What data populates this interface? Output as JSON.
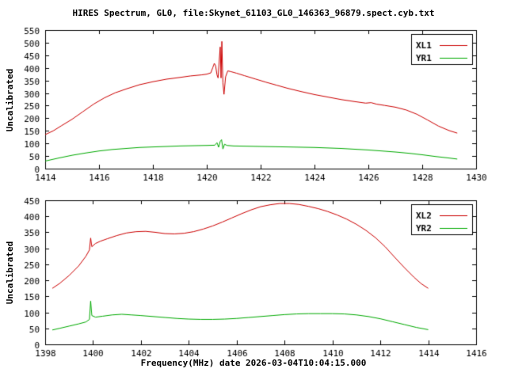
{
  "title": "HIRES Spectrum, GL0, file:Skynet_61103_GL0_146363_96879.spect.cyb.txt",
  "xlabel": "Frequency(MHz) date 2026-03-04T10:04:15.000",
  "colors": {
    "background": "#ffffff",
    "axis": "#000000",
    "red": "#cc0000",
    "green": "#00aa00"
  },
  "chart_data": [
    {
      "type": "line",
      "ylabel": "Uncalibrated",
      "xlim": [
        1414,
        1430
      ],
      "ylim": [
        0,
        550
      ],
      "xtick_step": 2,
      "ytick_step": 50,
      "grid": false,
      "legend_position": "top-right",
      "series": [
        {
          "name": "XL1",
          "color": "#cc0000",
          "points": [
            [
              1414.0,
              135
            ],
            [
              1414.3,
              150
            ],
            [
              1414.6,
              170
            ],
            [
              1415.0,
              196
            ],
            [
              1415.4,
              226
            ],
            [
              1415.8,
              256
            ],
            [
              1416.2,
              281
            ],
            [
              1416.6,
              301
            ],
            [
              1417.0,
              316
            ],
            [
              1417.5,
              333
            ],
            [
              1418.0,
              345
            ],
            [
              1418.5,
              355
            ],
            [
              1419.0,
              362
            ],
            [
              1419.4,
              368
            ],
            [
              1419.8,
              372
            ],
            [
              1420.0,
              375
            ],
            [
              1420.15,
              380
            ],
            [
              1420.22,
              400
            ],
            [
              1420.28,
              418
            ],
            [
              1420.33,
              408
            ],
            [
              1420.38,
              372
            ],
            [
              1420.42,
              360
            ],
            [
              1420.47,
              440
            ],
            [
              1420.5,
              483
            ],
            [
              1420.53,
              360
            ],
            [
              1420.56,
              505
            ],
            [
              1420.6,
              340
            ],
            [
              1420.64,
              295
            ],
            [
              1420.7,
              365
            ],
            [
              1420.78,
              388
            ],
            [
              1420.9,
              385
            ],
            [
              1421.1,
              379
            ],
            [
              1421.4,
              369
            ],
            [
              1421.8,
              356
            ],
            [
              1422.2,
              343
            ],
            [
              1422.6,
              331
            ],
            [
              1423.0,
              319
            ],
            [
              1423.5,
              306
            ],
            [
              1424.0,
              294
            ],
            [
              1424.5,
              284
            ],
            [
              1425.0,
              274
            ],
            [
              1425.5,
              266
            ],
            [
              1425.9,
              260
            ],
            [
              1426.1,
              262
            ],
            [
              1426.3,
              256
            ],
            [
              1426.6,
              251
            ],
            [
              1427.0,
              244
            ],
            [
              1427.4,
              233
            ],
            [
              1427.8,
              216
            ],
            [
              1428.2,
              193
            ],
            [
              1428.6,
              169
            ],
            [
              1429.0,
              151
            ],
            [
              1429.3,
              141
            ]
          ]
        },
        {
          "name": "YR1",
          "color": "#00aa00",
          "points": [
            [
              1414.0,
              30
            ],
            [
              1414.5,
              42
            ],
            [
              1415.0,
              53
            ],
            [
              1415.5,
              62
            ],
            [
              1416.0,
              70
            ],
            [
              1416.5,
              76
            ],
            [
              1417.0,
              80
            ],
            [
              1417.5,
              84
            ],
            [
              1418.0,
              86
            ],
            [
              1418.5,
              88
            ],
            [
              1419.0,
              90
            ],
            [
              1419.5,
              91
            ],
            [
              1420.0,
              92
            ],
            [
              1420.3,
              93
            ],
            [
              1420.38,
              103
            ],
            [
              1420.44,
              85
            ],
            [
              1420.5,
              108
            ],
            [
              1420.55,
              115
            ],
            [
              1420.6,
              78
            ],
            [
              1420.66,
              97
            ],
            [
              1420.75,
              92
            ],
            [
              1421.0,
              90
            ],
            [
              1421.5,
              89
            ],
            [
              1422.0,
              88
            ],
            [
              1422.5,
              87
            ],
            [
              1423.0,
              86
            ],
            [
              1423.5,
              85
            ],
            [
              1424.0,
              84
            ],
            [
              1424.5,
              82
            ],
            [
              1425.0,
              80
            ],
            [
              1425.5,
              77
            ],
            [
              1426.0,
              74
            ],
            [
              1426.5,
              70
            ],
            [
              1427.0,
              66
            ],
            [
              1427.5,
              61
            ],
            [
              1428.0,
              55
            ],
            [
              1428.5,
              48
            ],
            [
              1429.0,
              42
            ],
            [
              1429.3,
              38
            ]
          ]
        }
      ]
    },
    {
      "type": "line",
      "ylabel": "Uncalibrated",
      "xlim": [
        1398,
        1416
      ],
      "ylim": [
        0,
        450
      ],
      "xtick_step": 2,
      "ytick_step": 50,
      "grid": false,
      "legend_position": "top-right",
      "series": [
        {
          "name": "XL2",
          "color": "#cc0000",
          "points": [
            [
              1398.3,
              175
            ],
            [
              1398.6,
              190
            ],
            [
              1399.0,
              215
            ],
            [
              1399.4,
              245
            ],
            [
              1399.7,
              275
            ],
            [
              1399.85,
              295
            ],
            [
              1399.9,
              332
            ],
            [
              1399.95,
              305
            ],
            [
              1400.1,
              315
            ],
            [
              1400.3,
              322
            ],
            [
              1400.6,
              330
            ],
            [
              1401.0,
              340
            ],
            [
              1401.4,
              348
            ],
            [
              1401.8,
              352
            ],
            [
              1402.2,
              353
            ],
            [
              1402.6,
              350
            ],
            [
              1403.0,
              346
            ],
            [
              1403.4,
              345
            ],
            [
              1403.8,
              347
            ],
            [
              1404.2,
              352
            ],
            [
              1404.6,
              360
            ],
            [
              1405.0,
              370
            ],
            [
              1405.4,
              382
            ],
            [
              1405.8,
              395
            ],
            [
              1406.2,
              408
            ],
            [
              1406.6,
              420
            ],
            [
              1407.0,
              430
            ],
            [
              1407.4,
              436
            ],
            [
              1407.8,
              440
            ],
            [
              1408.2,
              440
            ],
            [
              1408.6,
              437
            ],
            [
              1409.0,
              431
            ],
            [
              1409.4,
              424
            ],
            [
              1409.8,
              415
            ],
            [
              1410.2,
              404
            ],
            [
              1410.6,
              391
            ],
            [
              1411.0,
              375
            ],
            [
              1411.4,
              356
            ],
            [
              1411.8,
              333
            ],
            [
              1412.2,
              305
            ],
            [
              1412.6,
              272
            ],
            [
              1413.0,
              240
            ],
            [
              1413.4,
              210
            ],
            [
              1413.7,
              190
            ],
            [
              1414.0,
              175
            ]
          ]
        },
        {
          "name": "YR2",
          "color": "#00aa00",
          "points": [
            [
              1398.3,
              45
            ],
            [
              1398.6,
              50
            ],
            [
              1399.0,
              57
            ],
            [
              1399.4,
              64
            ],
            [
              1399.7,
              70
            ],
            [
              1399.85,
              78
            ],
            [
              1399.9,
              135
            ],
            [
              1399.95,
              90
            ],
            [
              1400.1,
              85
            ],
            [
              1400.4,
              88
            ],
            [
              1400.8,
              92
            ],
            [
              1401.2,
              94
            ],
            [
              1401.6,
              92
            ],
            [
              1402.0,
              90
            ],
            [
              1402.5,
              87
            ],
            [
              1403.0,
              84
            ],
            [
              1403.5,
              81
            ],
            [
              1404.0,
              79
            ],
            [
              1404.5,
              78
            ],
            [
              1405.0,
              78
            ],
            [
              1405.5,
              79
            ],
            [
              1406.0,
              81
            ],
            [
              1406.5,
              84
            ],
            [
              1407.0,
              87
            ],
            [
              1407.5,
              90
            ],
            [
              1408.0,
              93
            ],
            [
              1408.5,
              95
            ],
            [
              1409.0,
              96
            ],
            [
              1409.5,
              96
            ],
            [
              1410.0,
              96
            ],
            [
              1410.5,
              95
            ],
            [
              1411.0,
              92
            ],
            [
              1411.5,
              87
            ],
            [
              1412.0,
              80
            ],
            [
              1412.5,
              71
            ],
            [
              1413.0,
              62
            ],
            [
              1413.5,
              53
            ],
            [
              1414.0,
              46
            ]
          ]
        }
      ]
    }
  ]
}
